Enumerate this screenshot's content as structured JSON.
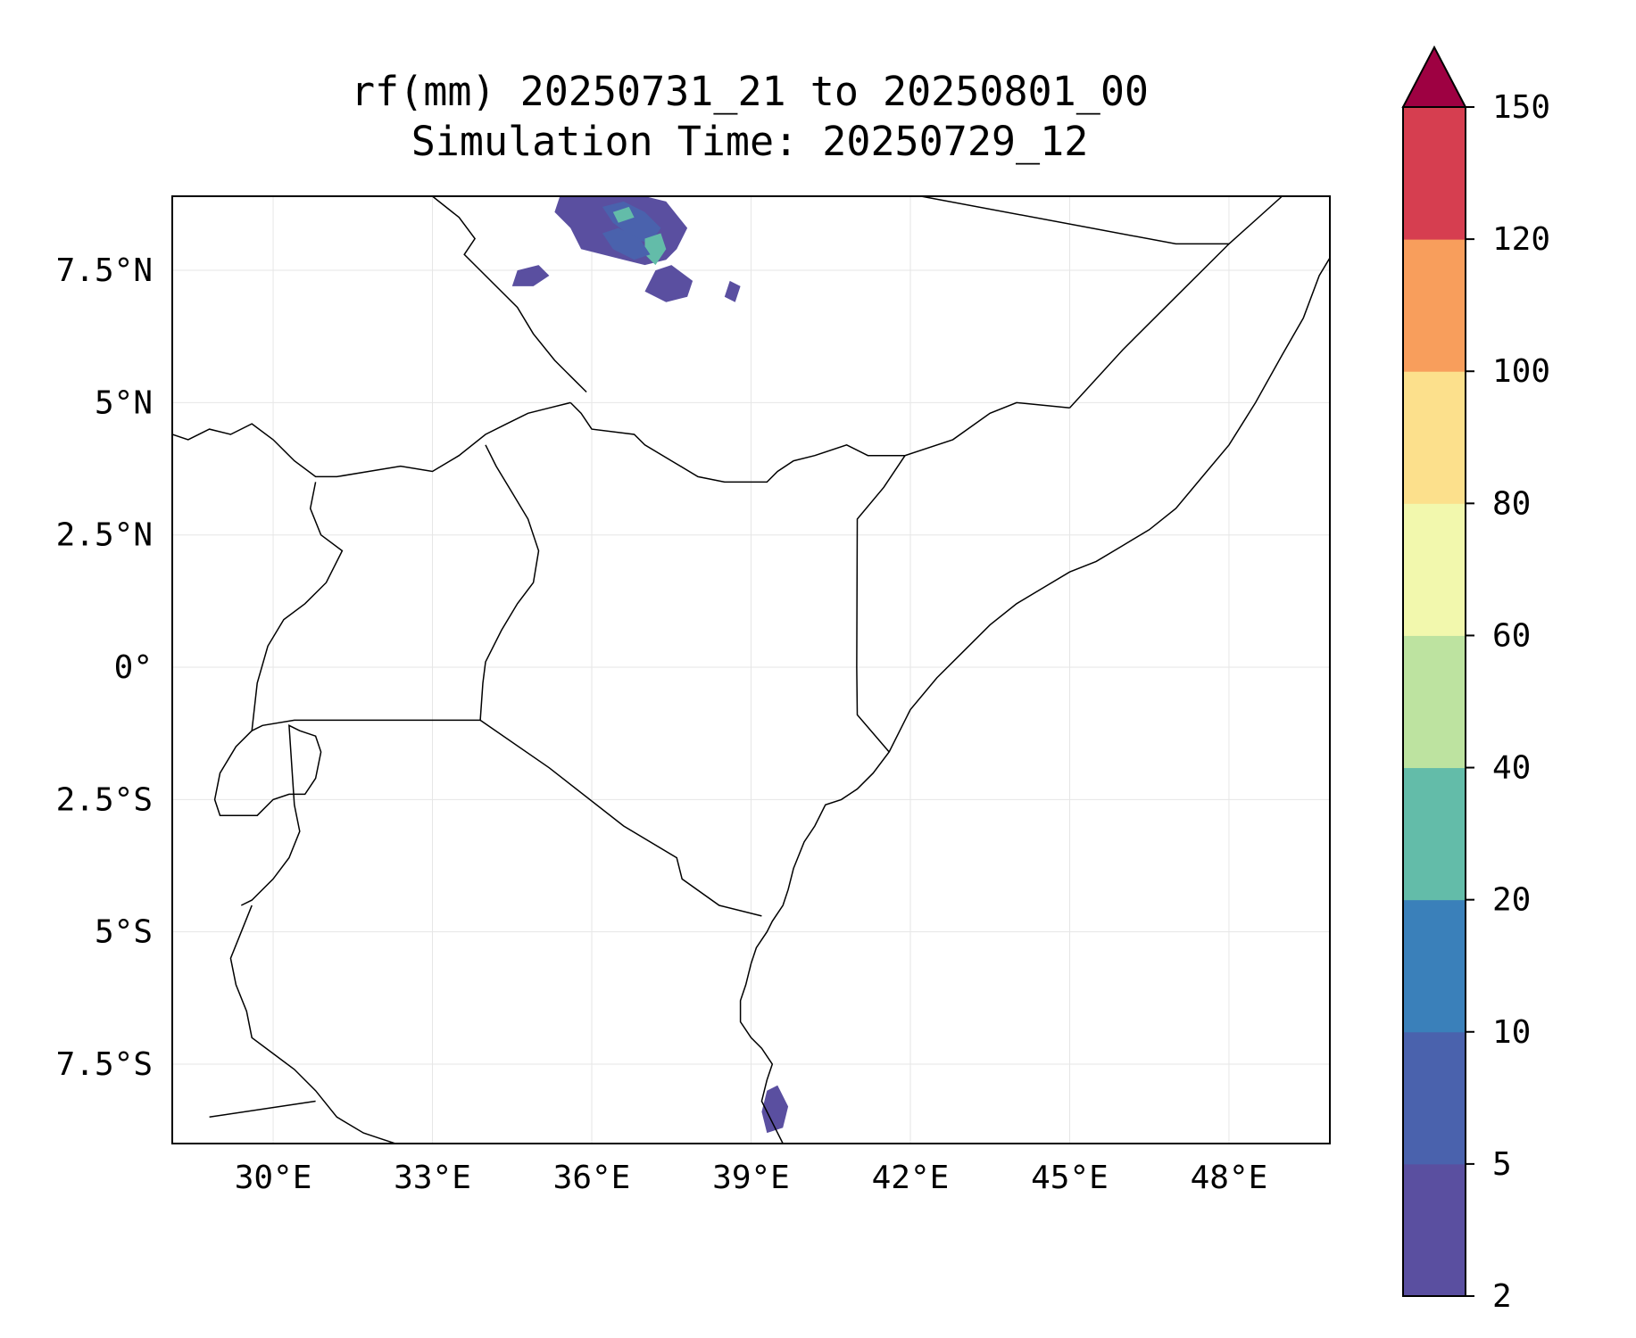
{
  "title": {
    "line1": "rf(mm) 20250731_21 to 20250801_00",
    "line2": "Simulation Time: 20250729_12"
  },
  "map": {
    "lon_range": [
      28.1,
      49.9
    ],
    "lat_range": [
      -9.0,
      8.9
    ],
    "x_ticks": [
      {
        "value": 30,
        "label": "30°E"
      },
      {
        "value": 33,
        "label": "33°E"
      },
      {
        "value": 36,
        "label": "36°E"
      },
      {
        "value": 39,
        "label": "39°E"
      },
      {
        "value": 42,
        "label": "42°E"
      },
      {
        "value": 45,
        "label": "45°E"
      },
      {
        "value": 48,
        "label": "48°E"
      }
    ],
    "y_ticks": [
      {
        "value": 7.5,
        "label": "7.5°N"
      },
      {
        "value": 5,
        "label": "5°N"
      },
      {
        "value": 2.5,
        "label": "2.5°N"
      },
      {
        "value": 0,
        "label": "0°"
      },
      {
        "value": -2.5,
        "label": "2.5°S"
      },
      {
        "value": -5,
        "label": "5°S"
      },
      {
        "value": -7.5,
        "label": "7.5°S"
      }
    ],
    "grid": true,
    "border_color": "#000000",
    "grid_color": "#e6e6e6"
  },
  "colorbar": {
    "levels": [
      "2",
      "5",
      "10",
      "20",
      "40",
      "60",
      "80",
      "100",
      "120",
      "150"
    ],
    "colors": [
      "#5a4fa0",
      "#4a62ad",
      "#3a80ba",
      "#63bca9",
      "#bde3a0",
      "#f2f8ad",
      "#fce08c",
      "#f89e5c",
      "#d63e50"
    ],
    "extend_color": "#9e0142",
    "extend": "max"
  },
  "rain_patches": [
    {
      "lon": [
        35.4,
        35.8,
        36.2,
        36.6,
        37.0,
        37.4,
        37.8,
        37.6,
        37.4,
        37.0,
        36.6,
        36.2,
        35.8,
        35.6,
        35.3
      ],
      "lat": [
        8.9,
        8.9,
        8.9,
        8.9,
        8.9,
        8.8,
        8.3,
        7.9,
        7.7,
        7.6,
        7.7,
        7.8,
        7.9,
        8.3,
        8.6
      ],
      "level": 0
    },
    {
      "lon": [
        36.2,
        36.6,
        37.0,
        37.3,
        37.1,
        36.8,
        36.4
      ],
      "lat": [
        8.7,
        8.8,
        8.6,
        8.3,
        8.0,
        8.1,
        8.4
      ],
      "level": 1
    },
    {
      "lon": [
        36.4,
        36.7,
        36.8,
        36.5
      ],
      "lat": [
        8.6,
        8.7,
        8.5,
        8.4
      ],
      "level": 3
    },
    {
      "lon": [
        37.0,
        37.3,
        37.4,
        37.2,
        37.0
      ],
      "lat": [
        8.1,
        8.2,
        7.9,
        7.6,
        7.8
      ],
      "level": 3
    },
    {
      "lon": [
        37.2,
        37.5,
        37.9,
        37.8,
        37.4,
        37.0
      ],
      "lat": [
        7.5,
        7.6,
        7.3,
        7.0,
        6.9,
        7.1
      ],
      "level": 0
    },
    {
      "lon": [
        34.6,
        35.0,
        35.2,
        34.9,
        34.5
      ],
      "lat": [
        7.5,
        7.6,
        7.4,
        7.2,
        7.2
      ],
      "level": 0
    },
    {
      "lon": [
        38.6,
        38.8,
        38.7,
        38.5
      ],
      "lat": [
        7.3,
        7.2,
        6.9,
        7.0
      ],
      "level": 0
    },
    {
      "lon": [
        39.3,
        39.5,
        39.7,
        39.6,
        39.3,
        39.2
      ],
      "lat": [
        -8.0,
        -7.9,
        -8.3,
        -8.7,
        -8.8,
        -8.4
      ],
      "level": 0
    },
    {
      "lon": [
        36.2,
        36.5,
        36.9,
        37.1,
        36.8,
        36.4
      ],
      "lat": [
        8.2,
        8.3,
        8.1,
        7.8,
        7.7,
        7.9
      ],
      "level": 1
    }
  ],
  "coastlines": [
    {
      "lon": [
        50.0,
        49.7,
        49.4,
        49.0,
        48.5,
        48.0,
        47.5,
        47.0,
        46.5,
        46.0,
        45.5,
        45.0,
        44.5,
        44.0,
        43.5,
        43.0,
        42.5,
        42.0,
        41.6,
        41.3,
        41.0,
        40.7,
        40.4,
        40.2,
        40.0,
        39.8,
        39.7,
        39.6,
        39.4,
        39.3,
        39.1,
        39.0,
        38.9,
        38.8,
        38.8,
        39.0,
        39.2,
        39.4,
        39.3,
        39.2,
        39.4,
        39.6
      ],
      "lat": [
        7.9,
        7.4,
        6.6,
        5.9,
        5.0,
        4.2,
        3.6,
        3.0,
        2.6,
        2.3,
        2.0,
        1.8,
        1.5,
        1.2,
        0.8,
        0.3,
        -0.2,
        -0.8,
        -1.6,
        -2.0,
        -2.3,
        -2.5,
        -2.6,
        -3.0,
        -3.3,
        -3.8,
        -4.2,
        -4.5,
        -4.8,
        -5.0,
        -5.3,
        -5.6,
        -6.0,
        -6.3,
        -6.7,
        -7.0,
        -7.2,
        -7.5,
        -7.8,
        -8.2,
        -8.6,
        -9.0
      ]
    }
  ],
  "borders": [
    {
      "lon": [
        28.1,
        28.4,
        28.8,
        29.2,
        29.6,
        30.0,
        30.4,
        30.8,
        31.2,
        31.8,
        32.4,
        33.0,
        33.5,
        34.0,
        34.4,
        34.8,
        35.2,
        35.6
      ],
      "lat": [
        4.4,
        4.3,
        4.5,
        4.4,
        4.6,
        4.3,
        3.9,
        3.6,
        3.6,
        3.7,
        3.8,
        3.7,
        4.0,
        4.4,
        4.6,
        4.8,
        4.9,
        5.0
      ]
    },
    {
      "lon": [
        30.8,
        30.7,
        30.9,
        31.3,
        31.0,
        30.6,
        30.2,
        29.9,
        29.7,
        29.6,
        29.8,
        30.4,
        31.5,
        32.6,
        33.9,
        33.95,
        34.0,
        34.3,
        34.6,
        34.9,
        35.0,
        34.8,
        34.5,
        34.2,
        34.0
      ],
      "lat": [
        3.5,
        3.0,
        2.5,
        2.2,
        1.6,
        1.2,
        0.9,
        0.4,
        -0.3,
        -1.2,
        -1.1,
        -1.0,
        -1.0,
        -1.0,
        -1.0,
        -0.3,
        0.1,
        0.7,
        1.2,
        1.6,
        2.2,
        2.8,
        3.3,
        3.8,
        4.2
      ]
    },
    {
      "lon": [
        33.9,
        35.2,
        36.6,
        37.6,
        37.7,
        38.4,
        39.2
      ],
      "lat": [
        -1.0,
        -1.9,
        -3.0,
        -3.6,
        -4.0,
        -4.5,
        -4.7
      ]
    },
    {
      "lon": [
        35.6,
        35.8,
        36.0,
        36.8,
        37.0,
        37.5,
        38.0,
        38.5,
        39.0,
        39.3,
        39.5,
        39.8,
        40.2,
        40.8,
        41.2,
        41.6,
        41.9,
        42.8,
        43.5,
        44.0,
        45.0
      ],
      "lat": [
        5.0,
        4.8,
        4.5,
        4.4,
        4.2,
        3.9,
        3.6,
        3.5,
        3.5,
        3.5,
        3.7,
        3.9,
        4.0,
        4.2,
        4.0,
        4.0,
        4.0,
        4.3,
        4.8,
        5.0,
        4.9
      ]
    },
    {
      "lon": [
        41.9,
        41.5,
        41.0,
        40.99,
        41.0,
        41.6
      ],
      "lat": [
        4.0,
        3.4,
        2.8,
        0.0,
        -0.9,
        -1.6
      ]
    },
    {
      "lon": [
        45.0,
        46.0,
        47.0,
        48.0,
        49.0
      ],
      "lat": [
        4.9,
        6.0,
        7.0,
        8.0,
        8.9
      ]
    },
    {
      "lon": [
        42.2,
        47.0,
        48.0
      ],
      "lat": [
        8.9,
        8.0,
        8.0
      ]
    },
    {
      "lon": [
        29.6,
        29.3,
        29.0,
        28.9,
        29.0,
        29.3,
        29.7,
        30.0,
        30.3,
        30.6,
        30.8,
        30.9,
        30.8,
        30.5,
        30.3,
        30.4,
        30.5,
        30.3,
        30.0,
        29.6,
        29.4
      ],
      "lat": [
        -1.2,
        -1.5,
        -2.0,
        -2.5,
        -2.8,
        -2.8,
        -2.8,
        -2.5,
        -2.4,
        -2.4,
        -2.1,
        -1.6,
        -1.3,
        -1.2,
        -1.1,
        -2.6,
        -3.1,
        -3.6,
        -4.0,
        -4.4,
        -4.5
      ]
    },
    {
      "lon": [
        29.6,
        29.4,
        29.2,
        29.3,
        29.5,
        29.6,
        30.0,
        30.4,
        30.8,
        31.2,
        31.7,
        32.0,
        32.3,
        32.6
      ],
      "lat": [
        -4.5,
        -5.0,
        -5.5,
        -6.0,
        -6.5,
        -7.0,
        -7.3,
        -7.6,
        -8.0,
        -8.5,
        -8.8,
        -8.9,
        -9.0,
        -9.0
      ]
    },
    {
      "lon": [
        28.8,
        30.8
      ],
      "lat": [
        -8.5,
        -8.2
      ]
    },
    {
      "lon": [
        33.0,
        33.5,
        33.8,
        33.6,
        33.9,
        34.2,
        34.6,
        34.9,
        35.3,
        35.6,
        35.9
      ],
      "lat": [
        8.9,
        8.5,
        8.1,
        7.8,
        7.5,
        7.2,
        6.8,
        6.3,
        5.8,
        5.5,
        5.2
      ]
    }
  ]
}
